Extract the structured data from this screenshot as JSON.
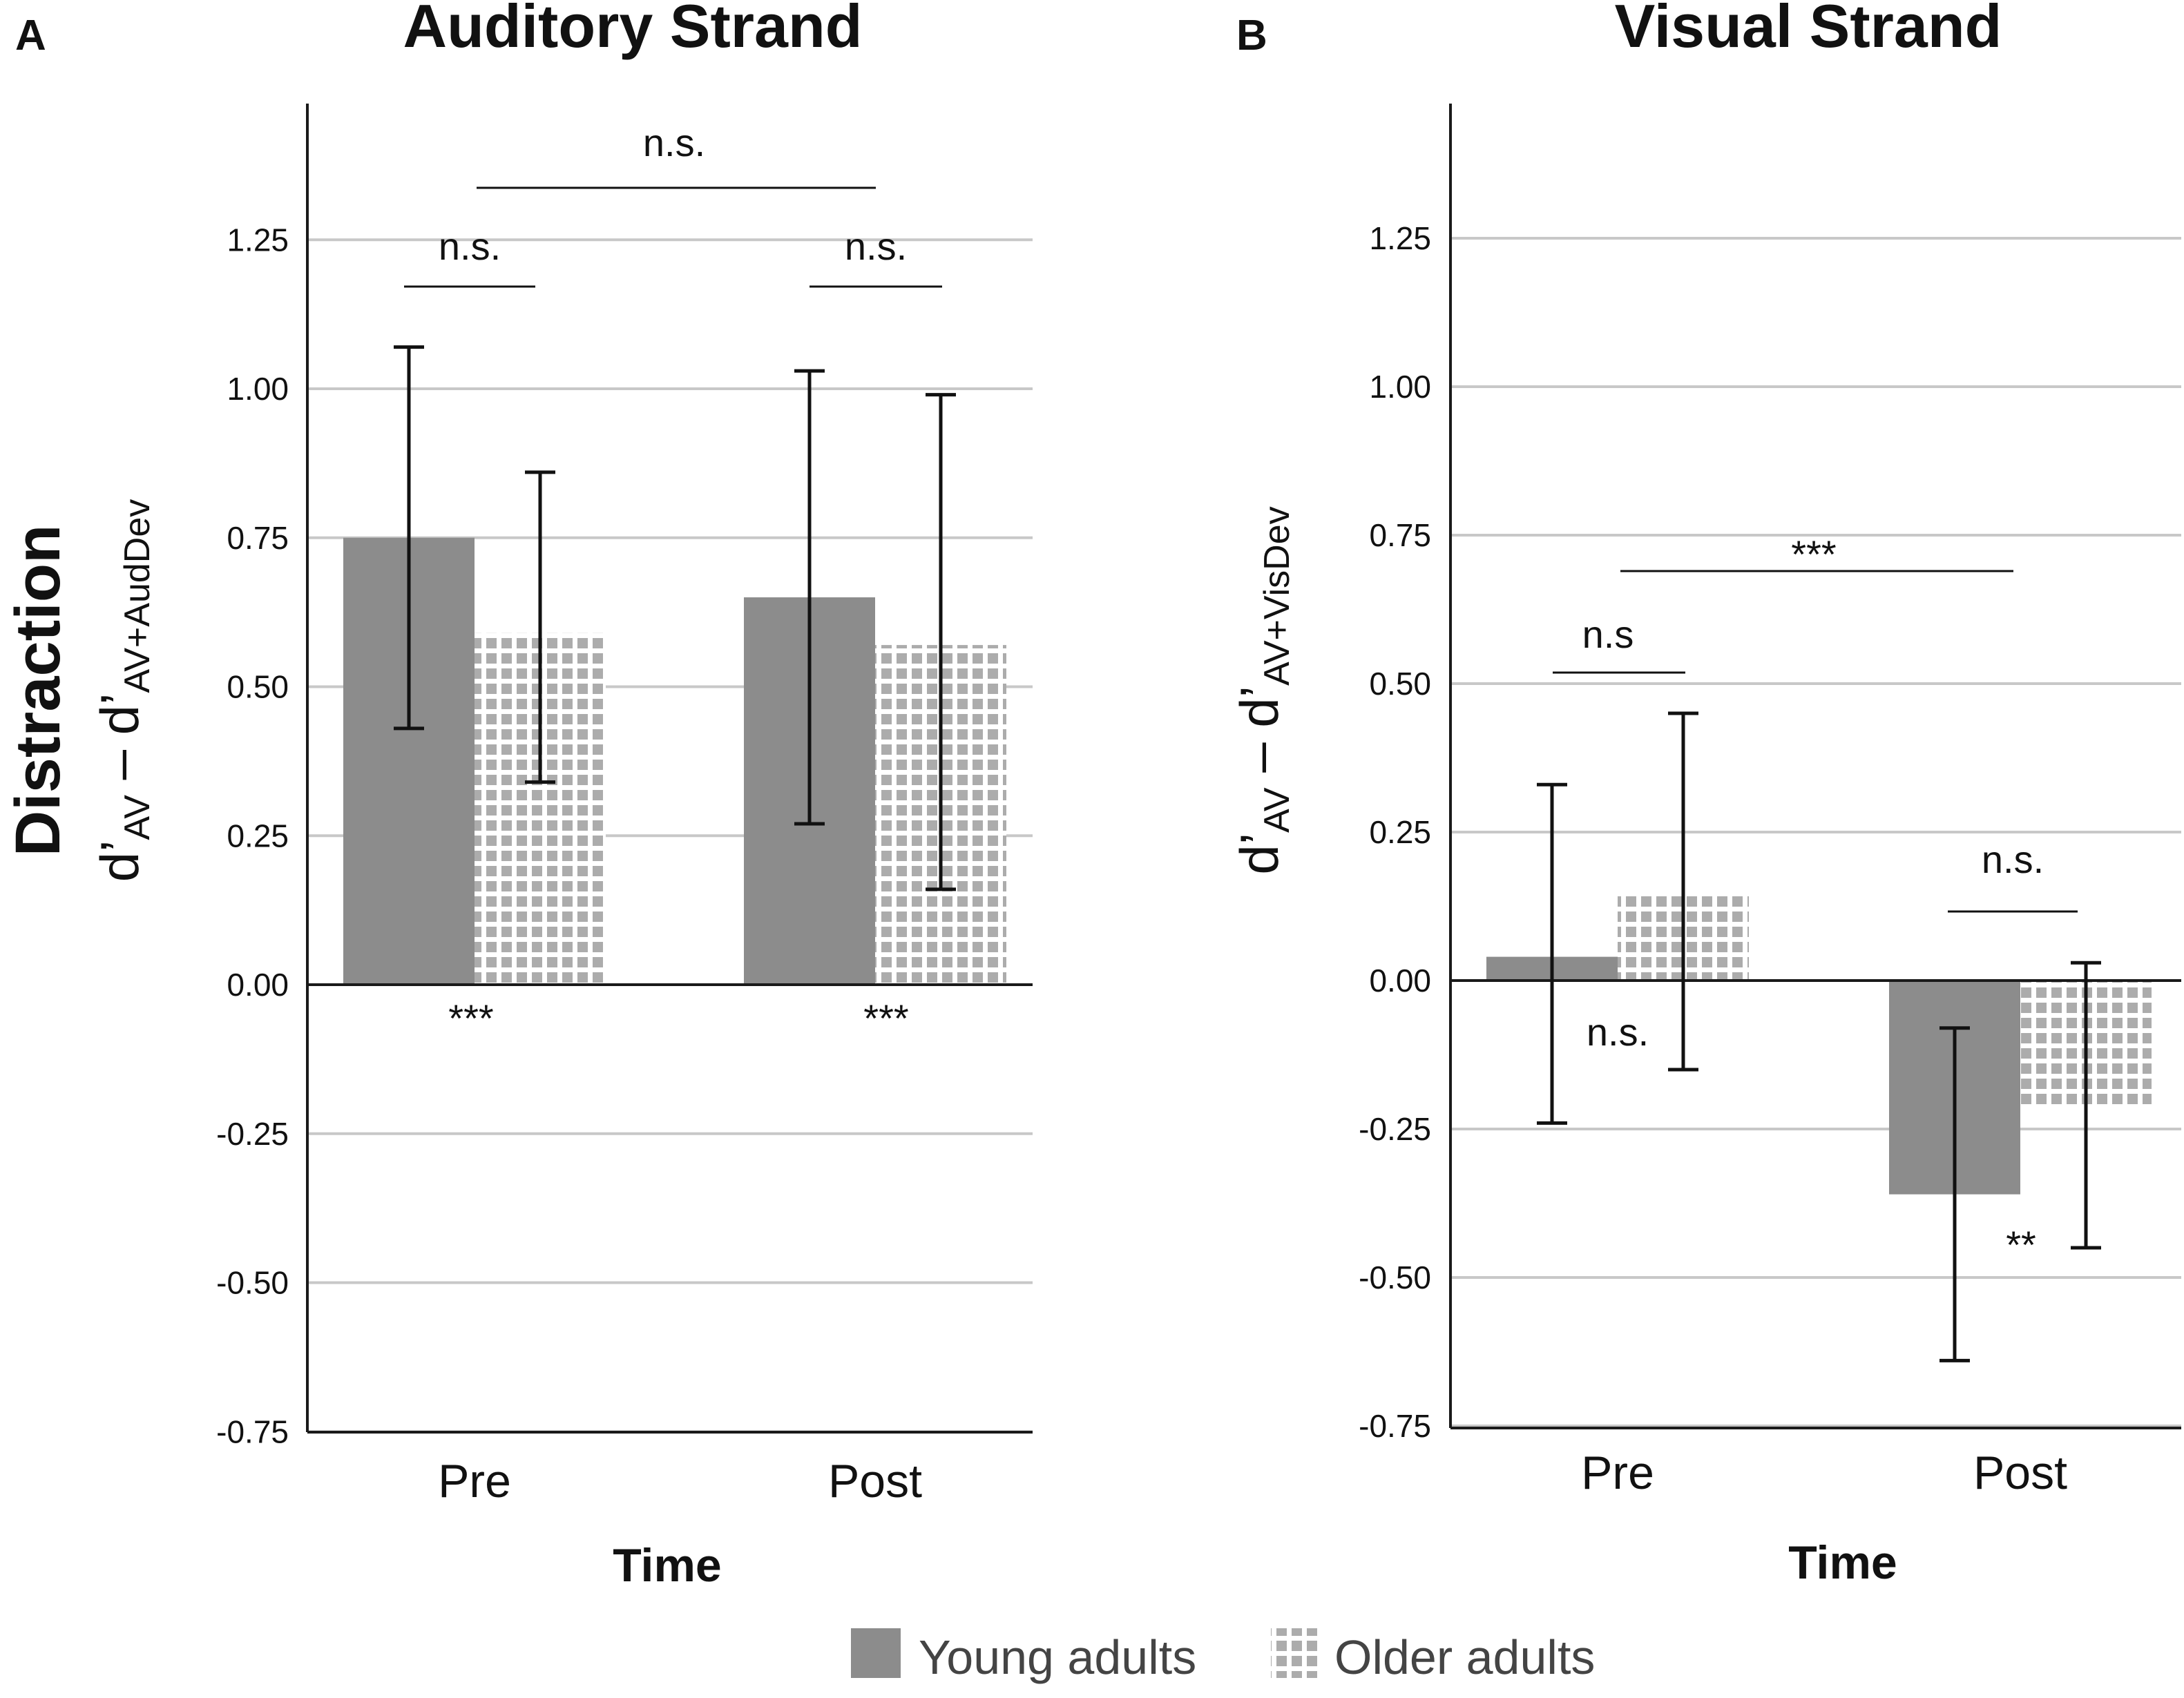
{
  "chart_data": [
    {
      "type": "bar",
      "panel_letter": "A",
      "title": "Auditory Strand",
      "xlabel": "Time",
      "ylabel": "Distraction",
      "ylabel_formula": {
        "d1": "d’",
        "sub1": "AV",
        "dash": " – ",
        "d2": "d’",
        "sub2": "AV+AudDev"
      },
      "ylim": [
        -0.75,
        1.4
      ],
      "yticks": [
        "1.25",
        "1.00",
        "0.75",
        "0.50",
        "0.25",
        "0.00",
        "-0.25",
        "-0.50",
        "-0.75"
      ],
      "categories": [
        "Pre",
        "Post"
      ],
      "series": [
        {
          "name": "Young adults",
          "values": [
            0.75,
            0.65
          ],
          "err_low": [
            0.43,
            0.27
          ],
          "err_high": [
            1.07,
            1.03
          ]
        },
        {
          "name": "Older adults",
          "values": [
            0.59,
            0.57
          ],
          "err_low": [
            0.34,
            0.16
          ],
          "err_high": [
            0.86,
            0.99
          ]
        }
      ],
      "annotations": {
        "pre_between_groups": "n.s.",
        "post_between_groups": "n.s.",
        "pre_vs_post": "n.s.",
        "pre_vs_zero": "***",
        "post_vs_zero": "***"
      }
    },
    {
      "type": "bar",
      "panel_letter": "B",
      "title": "Visual Strand",
      "xlabel": "Time",
      "ylabel": "",
      "ylabel_formula": {
        "d1": "d’",
        "sub1": "AV",
        "dash": " – ",
        "d2": "d’",
        "sub2": "AV+VisDev"
      },
      "ylim": [
        -0.75,
        1.4
      ],
      "yticks": [
        "1.25",
        "1.00",
        "0.75",
        "0.50",
        "0.25",
        "0.00",
        "-0.25",
        "-0.50",
        "-0.75"
      ],
      "categories": [
        "Pre",
        "Post"
      ],
      "series": [
        {
          "name": "Young adults",
          "values": [
            0.04,
            -0.36
          ],
          "err_low": [
            -0.24,
            -0.64
          ],
          "err_high": [
            0.33,
            -0.08
          ]
        },
        {
          "name": "Older adults",
          "values": [
            0.15,
            -0.21
          ],
          "err_low": [
            -0.15,
            -0.45
          ],
          "err_high": [
            0.45,
            0.03
          ]
        }
      ],
      "annotations": {
        "pre_between_groups": "n.s",
        "post_between_groups": "n.s.",
        "pre_vs_post": "***",
        "pre_vs_zero": "n.s.",
        "post_vs_zero": "**"
      }
    }
  ],
  "legend": [
    {
      "label": "Young adults",
      "style": "solid",
      "color": "#8c8c8c"
    },
    {
      "label": "Older adults",
      "style": "checkered",
      "color": "#aaaaaa"
    }
  ],
  "colors": {
    "young_fill": "#8c8c8c",
    "older_fill": "#ffffff",
    "older_check": "#acacac",
    "gridline": "#c8c8c8",
    "axis": "#1a1a1a"
  }
}
